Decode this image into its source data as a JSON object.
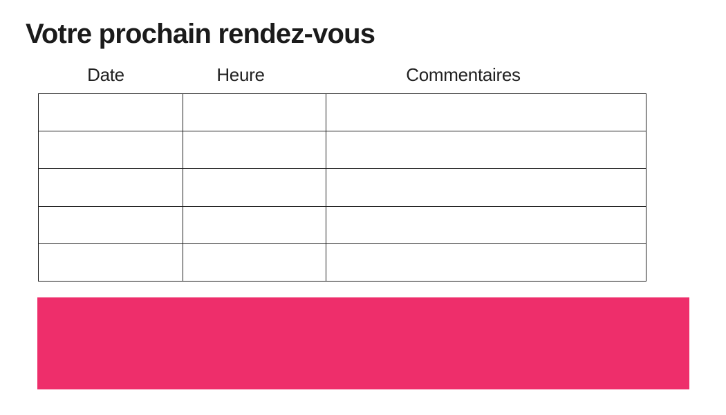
{
  "page": {
    "title": "Votre prochain rendez-vous",
    "background": "#ffffff"
  },
  "appointment_table": {
    "headers": [
      "Date",
      "Heure",
      "Commentaires"
    ],
    "rows": [
      [
        "",
        "",
        ""
      ],
      [
        "",
        "",
        ""
      ],
      [
        "",
        "",
        ""
      ],
      [
        "",
        "",
        ""
      ],
      [
        "",
        "",
        ""
      ]
    ]
  },
  "banner": {
    "color": "#EE2E6B",
    "text": ""
  },
  "colors": {
    "title_text": "#1b1b1b",
    "header_text": "#222222",
    "table_border": "#1d1d1d",
    "accent_pink": "#EE2E6B"
  }
}
